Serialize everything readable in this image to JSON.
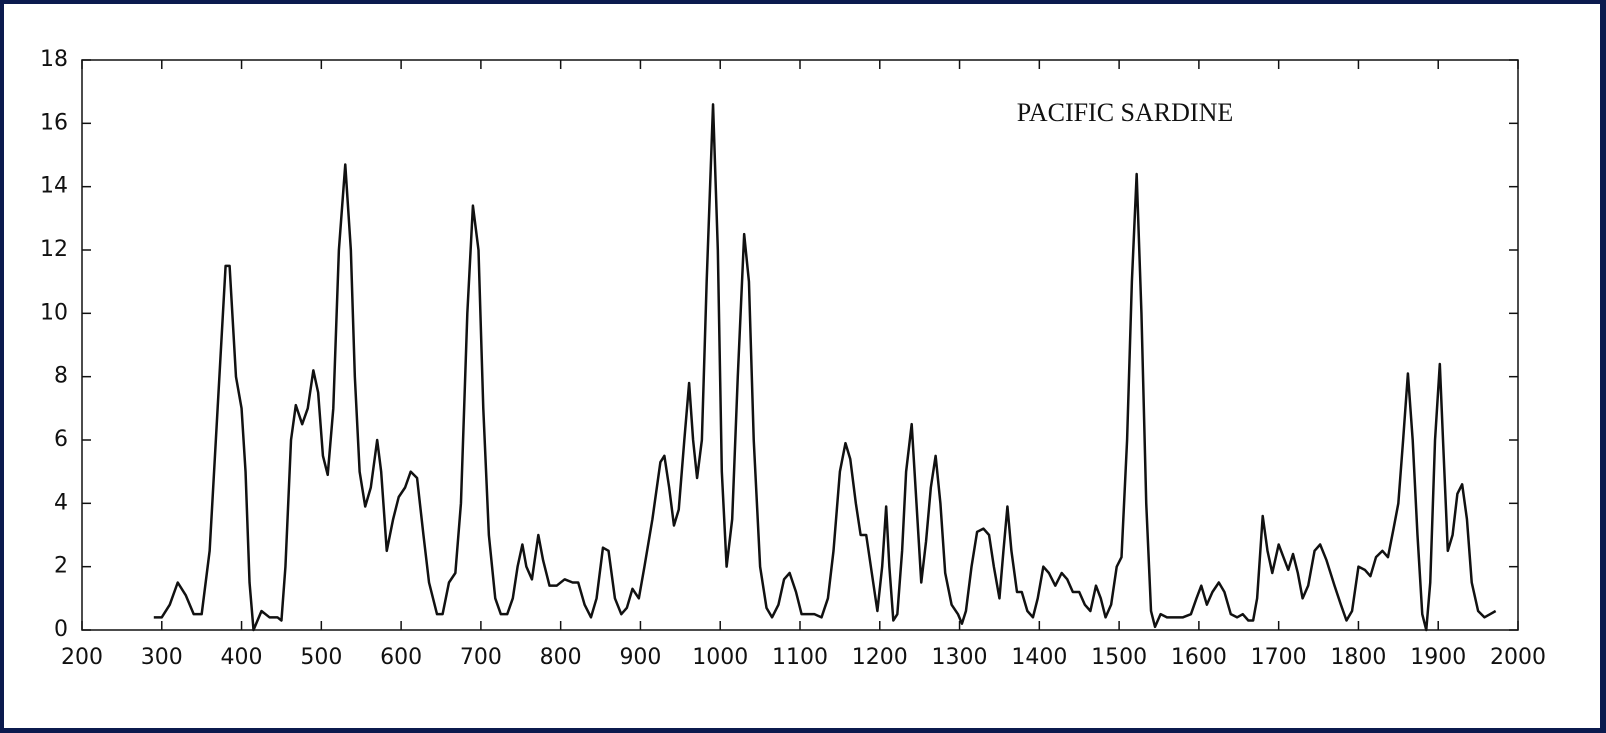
{
  "chart_data": {
    "type": "line",
    "annotation": "PACIFIC SARDINE",
    "xlim": [
      200,
      2000
    ],
    "xticks": [
      200,
      300,
      400,
      500,
      600,
      700,
      800,
      900,
      1000,
      1100,
      1200,
      1300,
      1400,
      1500,
      1600,
      1700,
      1800,
      1900,
      2000
    ],
    "ylim": [
      0,
      18
    ],
    "yticks": [
      0,
      2,
      4,
      6,
      8,
      10,
      12,
      14,
      16,
      18
    ],
    "series": [
      {
        "color": "#111111",
        "x": [
          290,
          300,
          310,
          320,
          330,
          340,
          350,
          360,
          370,
          380,
          385,
          393,
          400,
          405,
          410,
          415,
          425,
          435,
          445,
          450,
          455,
          462,
          468,
          476,
          483,
          490,
          496,
          502,
          508,
          515,
          522,
          530,
          537,
          542,
          548,
          555,
          562,
          570,
          575,
          582,
          590,
          597,
          605,
          612,
          620,
          628,
          635,
          645,
          652,
          660,
          668,
          675,
          683,
          690,
          697,
          703,
          710,
          718,
          725,
          733,
          740,
          746,
          752,
          757,
          764,
          772,
          778,
          786,
          795,
          805,
          815,
          822,
          830,
          838,
          845,
          853,
          860,
          868,
          876,
          883,
          890,
          898,
          905,
          915,
          925,
          930,
          936,
          942,
          948,
          955,
          961,
          966,
          971,
          977,
          983,
          991,
          997,
          1002,
          1008,
          1015,
          1022,
          1030,
          1036,
          1042,
          1050,
          1058,
          1065,
          1073,
          1080,
          1087,
          1095,
          1102,
          1110,
          1118,
          1127,
          1135,
          1142,
          1150,
          1157,
          1163,
          1170,
          1176,
          1183,
          1190,
          1197,
          1203,
          1208,
          1212,
          1217,
          1222,
          1228,
          1233,
          1240,
          1246,
          1252,
          1258,
          1264,
          1270,
          1276,
          1282,
          1290,
          1298,
          1303,
          1308,
          1315,
          1322,
          1330,
          1337,
          1343,
          1350,
          1355,
          1360,
          1365,
          1372,
          1378,
          1385,
          1392,
          1398,
          1405,
          1412,
          1420,
          1428,
          1435,
          1442,
          1450,
          1457,
          1464,
          1471,
          1477,
          1483,
          1490,
          1497,
          1503,
          1510,
          1516,
          1522,
          1528,
          1534,
          1540,
          1545,
          1552,
          1560,
          1570,
          1580,
          1590,
          1597,
          1603,
          1610,
          1617,
          1625,
          1632,
          1640,
          1648,
          1655,
          1662,
          1668,
          1673,
          1680,
          1686,
          1692,
          1700,
          1706,
          1712,
          1718,
          1724,
          1730,
          1737,
          1745,
          1752,
          1760,
          1770,
          1778,
          1785,
          1792,
          1800,
          1808,
          1815,
          1822,
          1830,
          1837,
          1844,
          1850,
          1856,
          1862,
          1868,
          1874,
          1880,
          1885,
          1890,
          1896,
          1902,
          1906,
          1912,
          1918,
          1924,
          1930,
          1936,
          1942,
          1950,
          1958,
          1965,
          1972
        ],
        "values": [
          0.4,
          0.4,
          0.8,
          1.5,
          1.1,
          0.5,
          0.5,
          2.5,
          7,
          11.5,
          11.5,
          8,
          7,
          5,
          1.5,
          0,
          0.6,
          0.4,
          0.4,
          0.3,
          2,
          6,
          7.1,
          6.5,
          7,
          8.2,
          7.5,
          5.5,
          4.9,
          7,
          12,
          14.7,
          12,
          8,
          5,
          3.9,
          4.5,
          6,
          5,
          2.5,
          3.5,
          4.2,
          4.5,
          5,
          4.8,
          3,
          1.5,
          0.5,
          0.5,
          1.5,
          1.8,
          4,
          10,
          13.4,
          12,
          7,
          3,
          1,
          0.5,
          0.5,
          1,
          2,
          2.7,
          2,
          1.6,
          3,
          2.2,
          1.4,
          1.4,
          1.6,
          1.5,
          1.5,
          0.8,
          0.4,
          1,
          2.6,
          2.5,
          1,
          0.5,
          0.7,
          1.3,
          1,
          2,
          3.5,
          5.3,
          5.5,
          4.5,
          3.3,
          3.8,
          6,
          7.8,
          6,
          4.8,
          6,
          11,
          16.6,
          12,
          5,
          2,
          3.5,
          8,
          12.5,
          11,
          6,
          2,
          0.7,
          0.4,
          0.8,
          1.6,
          1.8,
          1.2,
          0.5,
          0.5,
          0.5,
          0.4,
          1,
          2.5,
          5,
          5.9,
          5.4,
          4,
          3,
          3,
          1.8,
          0.6,
          2,
          3.9,
          2,
          0.3,
          0.5,
          2.5,
          5,
          6.5,
          4,
          1.5,
          2.8,
          4.5,
          5.5,
          4,
          1.8,
          0.8,
          0.5,
          0.2,
          0.6,
          2,
          3.1,
          3.2,
          3,
          2,
          1,
          2.5,
          3.9,
          2.5,
          1.2,
          1.2,
          0.6,
          0.4,
          1,
          2,
          1.8,
          1.4,
          1.8,
          1.6,
          1.2,
          1.2,
          0.8,
          0.6,
          1.4,
          1,
          0.4,
          0.8,
          2,
          2.3,
          6,
          11,
          14.4,
          10,
          4,
          0.6,
          0.1,
          0.5,
          0.4,
          0.4,
          0.4,
          0.5,
          1,
          1.4,
          0.8,
          1.2,
          1.5,
          1.2,
          0.5,
          0.4,
          0.5,
          0.3,
          0.3,
          1,
          3.6,
          2.5,
          1.8,
          2.7,
          2.3,
          1.9,
          2.4,
          1.8,
          1,
          1.4,
          2.5,
          2.7,
          2.2,
          1.4,
          0.8,
          0.3,
          0.6,
          2,
          1.9,
          1.7,
          2.3,
          2.5,
          2.3,
          3.2,
          4,
          6,
          8.1,
          6,
          3,
          0.5,
          0,
          1.5,
          6,
          8.4,
          6,
          2.5,
          3,
          4.3,
          4.6,
          3.5,
          1.5,
          0.6,
          0.4,
          0.5,
          0.6
        ]
      }
    ]
  }
}
